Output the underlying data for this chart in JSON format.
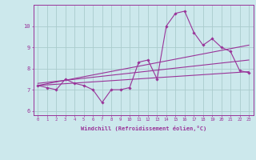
{
  "xlabel": "Windchill (Refroidissement éolien,°C)",
  "bg_color": "#cce8ec",
  "grid_color": "#aacccc",
  "line_color": "#993399",
  "x_hours": [
    0,
    1,
    2,
    3,
    4,
    5,
    6,
    7,
    8,
    9,
    10,
    11,
    12,
    13,
    14,
    15,
    16,
    17,
    18,
    19,
    20,
    21,
    22,
    23
  ],
  "series1": [
    7.2,
    7.1,
    7.0,
    7.5,
    7.3,
    7.2,
    7.0,
    6.4,
    7.0,
    7.0,
    7.1,
    8.3,
    8.4,
    7.5,
    10.0,
    10.6,
    10.7,
    9.7,
    9.1,
    9.4,
    9.0,
    8.8,
    7.9,
    7.8
  ],
  "series2_x": [
    0,
    23
  ],
  "series2_y": [
    7.2,
    7.85
  ],
  "series3_x": [
    0,
    23
  ],
  "series3_y": [
    7.3,
    8.4
  ],
  "series4_x": [
    0,
    23
  ],
  "series4_y": [
    7.2,
    9.1
  ],
  "ylim": [
    5.8,
    11.0
  ],
  "xlim": [
    -0.5,
    23.5
  ],
  "yticks": [
    6,
    7,
    8,
    9,
    10
  ]
}
